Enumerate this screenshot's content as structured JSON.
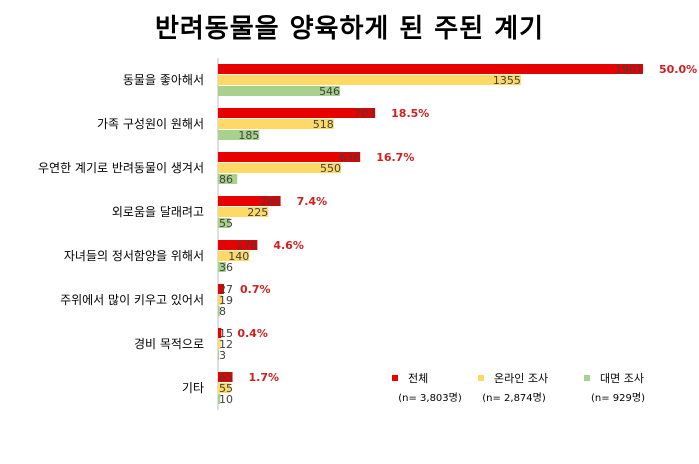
{
  "chart_data": {
    "type": "bar",
    "orientation": "horizontal",
    "title": "반려동물을 양육하게 된 주된 계기",
    "categories": [
      "동물을 좋아해서",
      "가족 구성원이 원해서",
      "우연한 계기로 반려동물이 생겨서",
      "외로움을 달래려고",
      "자녀들의 정서함양을 위해서",
      "주위에서 많이 키우고 있어서",
      "경비 목적으로",
      "기타"
    ],
    "series": [
      {
        "name": "전체",
        "color": "#e60000",
        "values": [
          1901,
          703,
          636,
          280,
          176,
          27,
          15,
          65
        ]
      },
      {
        "name": "온라인 조사",
        "color": "#ffd966",
        "values": [
          1355,
          518,
          550,
          225,
          140,
          19,
          12,
          55
        ]
      },
      {
        "name": "대면 조사",
        "color": "#a9d18e",
        "values": [
          546,
          185,
          86,
          55,
          36,
          8,
          3,
          10
        ]
      }
    ],
    "percent_labels": [
      "50.0%",
      "18.5%",
      "16.7%",
      "7.4%",
      "4.6%",
      "0.7%",
      "0.4%",
      "1.7%"
    ],
    "legend_notes": [
      "(n= 3,803명)",
      "(n= 2,874명)",
      "(n= 929명)"
    ],
    "legend_position": "bottom-right",
    "grid": false,
    "xlim": [
      0,
      1901
    ]
  }
}
